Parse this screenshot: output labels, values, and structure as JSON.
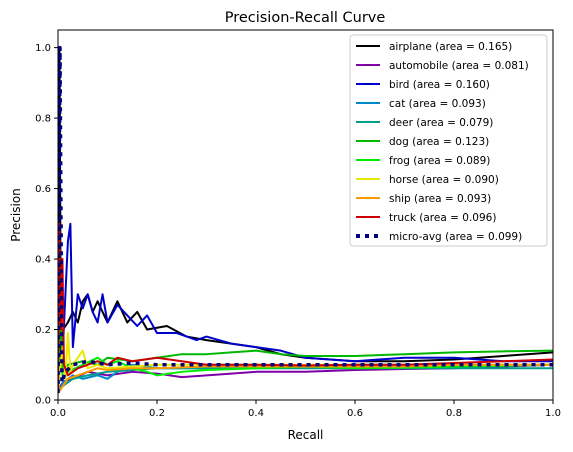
{
  "chart_data": {
    "type": "line",
    "title": "Precision-Recall Curve",
    "xlabel": "Recall",
    "ylabel": "Precision",
    "xlim": [
      0.0,
      1.0
    ],
    "ylim": [
      0.0,
      1.05
    ],
    "x_ticks": [
      "0.0",
      "0.2",
      "0.4",
      "0.6",
      "0.8",
      "1.0"
    ],
    "y_ticks": [
      "0.0",
      "0.2",
      "0.4",
      "0.6",
      "0.8",
      "1.0"
    ],
    "grid": false,
    "legend_position": "top-right",
    "series": [
      {
        "name": "airplane",
        "label": "airplane (area = 0.165)",
        "color": "#000000",
        "dash": "solid",
        "points": [
          [
            0,
            0.02
          ],
          [
            0.003,
            1.0
          ],
          [
            0.006,
            0.1
          ],
          [
            0.01,
            0.2
          ],
          [
            0.02,
            0.22
          ],
          [
            0.03,
            0.25
          ],
          [
            0.04,
            0.22
          ],
          [
            0.05,
            0.28
          ],
          [
            0.06,
            0.3
          ],
          [
            0.07,
            0.25
          ],
          [
            0.08,
            0.28
          ],
          [
            0.1,
            0.22
          ],
          [
            0.12,
            0.28
          ],
          [
            0.14,
            0.22
          ],
          [
            0.16,
            0.25
          ],
          [
            0.18,
            0.2
          ],
          [
            0.22,
            0.21
          ],
          [
            0.26,
            0.18
          ],
          [
            0.3,
            0.17
          ],
          [
            0.35,
            0.16
          ],
          [
            0.4,
            0.15
          ],
          [
            0.45,
            0.13
          ],
          [
            0.5,
            0.12
          ],
          [
            0.6,
            0.11
          ],
          [
            0.7,
            0.11
          ],
          [
            0.8,
            0.115
          ],
          [
            0.9,
            0.125
          ],
          [
            1.0,
            0.135
          ]
        ]
      },
      {
        "name": "automobile",
        "label": "automobile (area = 0.081)",
        "color": "#7f00a8",
        "dash": "solid",
        "points": [
          [
            0,
            0.03
          ],
          [
            0.01,
            0.05
          ],
          [
            0.03,
            0.06
          ],
          [
            0.06,
            0.08
          ],
          [
            0.1,
            0.07
          ],
          [
            0.15,
            0.08
          ],
          [
            0.2,
            0.075
          ],
          [
            0.25,
            0.065
          ],
          [
            0.3,
            0.07
          ],
          [
            0.35,
            0.075
          ],
          [
            0.4,
            0.08
          ],
          [
            0.5,
            0.08
          ],
          [
            0.6,
            0.085
          ],
          [
            0.7,
            0.088
          ],
          [
            0.8,
            0.09
          ],
          [
            0.9,
            0.095
          ],
          [
            1.0,
            0.1
          ]
        ]
      },
      {
        "name": "bird",
        "label": "bird (area = 0.160)",
        "color": "#0000cc",
        "dash": "solid",
        "points": [
          [
            0,
            0.05
          ],
          [
            0.006,
            0.1
          ],
          [
            0.01,
            0.15
          ],
          [
            0.015,
            0.3
          ],
          [
            0.02,
            0.45
          ],
          [
            0.025,
            0.5
          ],
          [
            0.03,
            0.15
          ],
          [
            0.04,
            0.3
          ],
          [
            0.05,
            0.26
          ],
          [
            0.06,
            0.3
          ],
          [
            0.07,
            0.25
          ],
          [
            0.08,
            0.22
          ],
          [
            0.09,
            0.3
          ],
          [
            0.1,
            0.22
          ],
          [
            0.12,
            0.27
          ],
          [
            0.14,
            0.24
          ],
          [
            0.16,
            0.21
          ],
          [
            0.18,
            0.24
          ],
          [
            0.2,
            0.19
          ],
          [
            0.24,
            0.19
          ],
          [
            0.28,
            0.17
          ],
          [
            0.3,
            0.18
          ],
          [
            0.35,
            0.16
          ],
          [
            0.4,
            0.15
          ],
          [
            0.45,
            0.14
          ],
          [
            0.5,
            0.12
          ],
          [
            0.6,
            0.11
          ],
          [
            0.7,
            0.12
          ],
          [
            0.8,
            0.12
          ],
          [
            0.9,
            0.11
          ],
          [
            1.0,
            0.11
          ]
        ]
      },
      {
        "name": "cat",
        "label": "cat (area = 0.093)",
        "color": "#0088cc",
        "dash": "solid",
        "points": [
          [
            0,
            0.02
          ],
          [
            0.01,
            0.05
          ],
          [
            0.03,
            0.07
          ],
          [
            0.05,
            0.06
          ],
          [
            0.08,
            0.07
          ],
          [
            0.1,
            0.06
          ],
          [
            0.12,
            0.08
          ],
          [
            0.15,
            0.1
          ],
          [
            0.2,
            0.09
          ],
          [
            0.3,
            0.09
          ],
          [
            0.4,
            0.095
          ],
          [
            0.5,
            0.095
          ],
          [
            0.6,
            0.09
          ],
          [
            0.7,
            0.092
          ],
          [
            0.8,
            0.095
          ],
          [
            0.9,
            0.097
          ],
          [
            1.0,
            0.1
          ]
        ]
      },
      {
        "name": "deer",
        "label": "deer (area = 0.079)",
        "color": "#009e8a",
        "dash": "solid",
        "points": [
          [
            0,
            0.02
          ],
          [
            0.01,
            0.04
          ],
          [
            0.03,
            0.06
          ],
          [
            0.06,
            0.07
          ],
          [
            0.1,
            0.08
          ],
          [
            0.15,
            0.085
          ],
          [
            0.2,
            0.09
          ],
          [
            0.3,
            0.09
          ],
          [
            0.4,
            0.09
          ],
          [
            0.5,
            0.09
          ],
          [
            0.6,
            0.09
          ],
          [
            0.7,
            0.09
          ],
          [
            0.8,
            0.09
          ],
          [
            0.9,
            0.09
          ],
          [
            1.0,
            0.09
          ]
        ]
      },
      {
        "name": "dog",
        "label": "dog (area = 0.123)",
        "color": "#00b800",
        "dash": "solid",
        "points": [
          [
            0,
            0.02
          ],
          [
            0.005,
            0.25
          ],
          [
            0.01,
            0.08
          ],
          [
            0.02,
            0.1
          ],
          [
            0.05,
            0.11
          ],
          [
            0.08,
            0.1
          ],
          [
            0.1,
            0.12
          ],
          [
            0.15,
            0.11
          ],
          [
            0.2,
            0.12
          ],
          [
            0.25,
            0.13
          ],
          [
            0.3,
            0.13
          ],
          [
            0.35,
            0.135
          ],
          [
            0.4,
            0.14
          ],
          [
            0.45,
            0.13
          ],
          [
            0.5,
            0.125
          ],
          [
            0.6,
            0.125
          ],
          [
            0.7,
            0.13
          ],
          [
            0.8,
            0.135
          ],
          [
            0.9,
            0.138
          ],
          [
            1.0,
            0.14
          ]
        ]
      },
      {
        "name": "frog",
        "label": "frog (area = 0.089)",
        "color": "#00ee00",
        "dash": "solid",
        "points": [
          [
            0,
            0.02
          ],
          [
            0.005,
            0.12
          ],
          [
            0.01,
            0.06
          ],
          [
            0.02,
            0.08
          ],
          [
            0.05,
            0.1
          ],
          [
            0.08,
            0.12
          ],
          [
            0.1,
            0.1
          ],
          [
            0.12,
            0.11
          ],
          [
            0.15,
            0.09
          ],
          [
            0.18,
            0.08
          ],
          [
            0.2,
            0.07
          ],
          [
            0.25,
            0.08
          ],
          [
            0.3,
            0.085
          ],
          [
            0.4,
            0.09
          ],
          [
            0.5,
            0.095
          ],
          [
            0.6,
            0.09
          ],
          [
            0.7,
            0.092
          ],
          [
            0.8,
            0.095
          ],
          [
            0.9,
            0.097
          ],
          [
            1.0,
            0.1
          ]
        ]
      },
      {
        "name": "horse",
        "label": "horse (area = 0.090)",
        "color": "#e8e800",
        "dash": "solid",
        "points": [
          [
            0,
            0.02
          ],
          [
            0.005,
            0.1
          ],
          [
            0.01,
            0.15
          ],
          [
            0.015,
            0.06
          ],
          [
            0.02,
            0.19
          ],
          [
            0.025,
            0.08
          ],
          [
            0.03,
            0.1
          ],
          [
            0.04,
            0.12
          ],
          [
            0.05,
            0.14
          ],
          [
            0.06,
            0.09
          ],
          [
            0.08,
            0.1
          ],
          [
            0.1,
            0.09
          ],
          [
            0.15,
            0.095
          ],
          [
            0.2,
            0.1
          ],
          [
            0.3,
            0.1
          ],
          [
            0.4,
            0.1
          ],
          [
            0.5,
            0.1
          ],
          [
            0.6,
            0.1
          ],
          [
            0.7,
            0.1
          ],
          [
            0.8,
            0.1
          ],
          [
            0.9,
            0.1
          ],
          [
            1.0,
            0.1
          ]
        ]
      },
      {
        "name": "ship",
        "label": "ship (area = 0.093)",
        "color": "#ff9900",
        "dash": "solid",
        "points": [
          [
            0,
            0.02
          ],
          [
            0.01,
            0.04
          ],
          [
            0.02,
            0.06
          ],
          [
            0.04,
            0.07
          ],
          [
            0.06,
            0.08
          ],
          [
            0.08,
            0.09
          ],
          [
            0.1,
            0.085
          ],
          [
            0.15,
            0.09
          ],
          [
            0.2,
            0.09
          ],
          [
            0.3,
            0.095
          ],
          [
            0.4,
            0.095
          ],
          [
            0.5,
            0.095
          ],
          [
            0.6,
            0.095
          ],
          [
            0.7,
            0.095
          ],
          [
            0.8,
            0.1
          ],
          [
            0.9,
            0.1
          ],
          [
            1.0,
            0.1
          ]
        ]
      },
      {
        "name": "truck",
        "label": "truck (area = 0.096)",
        "color": "#cc0000",
        "dash": "solid",
        "points": [
          [
            0,
            0.02
          ],
          [
            0.003,
            0.5
          ],
          [
            0.006,
            0.2
          ],
          [
            0.009,
            0.4
          ],
          [
            0.012,
            0.1
          ],
          [
            0.02,
            0.07
          ],
          [
            0.04,
            0.09
          ],
          [
            0.06,
            0.1
          ],
          [
            0.08,
            0.11
          ],
          [
            0.1,
            0.1
          ],
          [
            0.12,
            0.12
          ],
          [
            0.15,
            0.11
          ],
          [
            0.2,
            0.12
          ],
          [
            0.25,
            0.11
          ],
          [
            0.3,
            0.1
          ],
          [
            0.4,
            0.1
          ],
          [
            0.5,
            0.098
          ],
          [
            0.6,
            0.1
          ],
          [
            0.7,
            0.1
          ],
          [
            0.8,
            0.105
          ],
          [
            0.9,
            0.11
          ],
          [
            1.0,
            0.115
          ]
        ]
      },
      {
        "name": "micro-avg",
        "label": "micro-avg (area = 0.099)",
        "color": "#000080",
        "dash": "dotted",
        "points": [
          [
            0,
            0.02
          ],
          [
            0.004,
            1.0
          ],
          [
            0.008,
            0.05
          ],
          [
            0.015,
            0.08
          ],
          [
            0.03,
            0.1
          ],
          [
            0.06,
            0.11
          ],
          [
            0.1,
            0.1
          ],
          [
            0.15,
            0.105
          ],
          [
            0.2,
            0.1
          ],
          [
            0.3,
            0.1
          ],
          [
            0.4,
            0.1
          ],
          [
            0.5,
            0.1
          ],
          [
            0.6,
            0.1
          ],
          [
            0.7,
            0.1
          ],
          [
            0.8,
            0.1
          ],
          [
            0.9,
            0.1
          ],
          [
            1.0,
            0.1
          ]
        ]
      }
    ]
  }
}
